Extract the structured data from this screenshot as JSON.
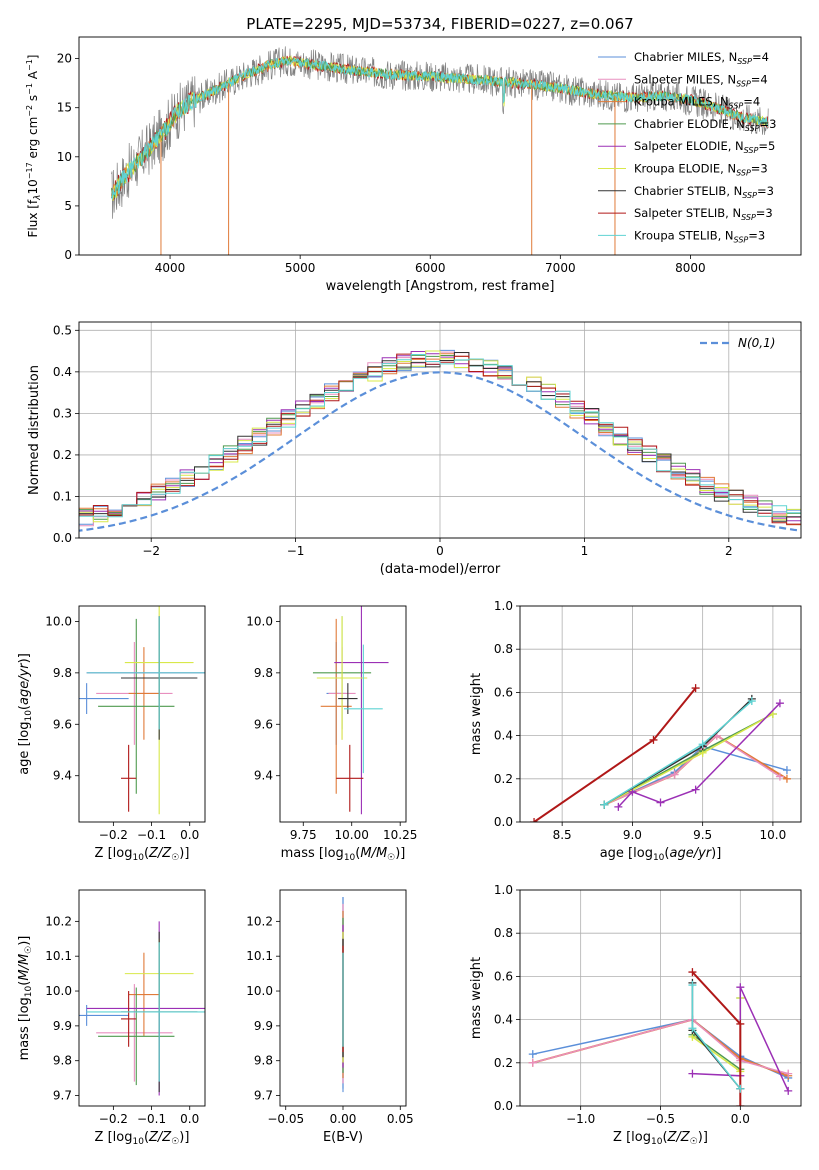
{
  "figure": {
    "title": "PLATE=2295, MJD=53734, FIBERID=0227, z=0.067"
  },
  "colors": {
    "Chabrier MILES": "#5b8fd9",
    "Salpeter MILES": "#e88fbf",
    "Kroupa MILES": "#e07b39",
    "Chabrier ELODIE": "#4f9a4f",
    "Salpeter ELODIE": "#9b30b5",
    "Kroupa ELODIE": "#d8e84a",
    "Chabrier STELIB": "#333333",
    "Salpeter STELIB": "#b01818",
    "Kroupa STELIB": "#5fd3d3",
    "gaussian": "#5b8fd9",
    "data_spectrum": "#808080"
  },
  "chart_data": [
    {
      "id": "spectrum",
      "type": "line",
      "title": "PLATE=2295, MJD=53734, FIBERID=0227, z=0.067",
      "xlabel": "wavelength [Angstrom, rest frame]",
      "ylabel": "Flux [f_λ 10^-17 erg cm^-2 s^-1 A^-1]",
      "xlim": [
        3300,
        8850
      ],
      "ylim": [
        0,
        22.2
      ],
      "xticks": [
        4000,
        5000,
        6000,
        7000,
        8000
      ],
      "yticks": [
        0,
        5,
        10,
        15,
        20
      ],
      "grid": false,
      "legend_position": "top-right",
      "series": [
        {
          "name": "Chabrier MILES, N_SSP=4"
        },
        {
          "name": "Salpeter MILES, N_SSP=4"
        },
        {
          "name": "Kroupa MILES, N_SSP=4"
        },
        {
          "name": "Chabrier ELODIE, N_SSP=3"
        },
        {
          "name": "Salpeter ELODIE, N_SSP=5"
        },
        {
          "name": "Kroupa ELODIE, N_SSP=3"
        },
        {
          "name": "Chabrier STELIB, N_SSP=3"
        },
        {
          "name": "Salpeter STELIB, N_SSP=3"
        },
        {
          "name": "Kroupa STELIB, N_SSP=3"
        }
      ],
      "continuum": {
        "x": [
          3550,
          3650,
          3750,
          3850,
          3950,
          4050,
          4150,
          4300,
          4450,
          4600,
          4700,
          4800,
          4900,
          5000,
          5200,
          5400,
          5600,
          5800,
          6000,
          6200,
          6400,
          6600,
          6800,
          7000,
          7200,
          7400,
          7600,
          7800,
          8000,
          8200,
          8400,
          8600
        ],
        "y": [
          6,
          8,
          9.5,
          11,
          12.5,
          14.5,
          15.5,
          16.5,
          17.5,
          18.5,
          19,
          19.5,
          19.8,
          19.6,
          19.2,
          18.8,
          18.5,
          18.3,
          18.2,
          18,
          17.8,
          17.6,
          17.3,
          17,
          16.5,
          16.2,
          16,
          16.2,
          15.8,
          15,
          14,
          13.5
        ]
      },
      "spikes": [
        {
          "x": 3930,
          "y": 0
        },
        {
          "x": 4450,
          "y": 0
        },
        {
          "x": 6780,
          "y": 0
        },
        {
          "x": 7420,
          "y": 0
        }
      ]
    },
    {
      "id": "residuals",
      "type": "histogram",
      "xlabel": "(data-model)/error",
      "ylabel": "Normed distribution",
      "xlim": [
        -2.5,
        2.5
      ],
      "ylim": [
        0,
        0.52
      ],
      "xticks": [
        -2,
        -1,
        0,
        1,
        2
      ],
      "yticks": [
        0,
        0.1,
        0.2,
        0.3,
        0.4,
        0.5
      ],
      "grid": true,
      "legend_position": "top-right",
      "legend": "N(0,1)",
      "bin_width": 0.1
    },
    {
      "id": "age-vs-Z",
      "type": "errorbar",
      "xlabel": "Z [log10(Z/Z☉)]",
      "ylabel": "age  [log10(age/yr)]",
      "xlim": [
        -0.29,
        0.04
      ],
      "ylim": [
        9.22,
        10.06
      ],
      "xticks": [
        -0.2,
        -0.1,
        0.0
      ],
      "yticks": [
        9.4,
        9.6,
        9.8,
        10.0
      ],
      "points": [
        {
          "x": -0.27,
          "y": 9.7,
          "xerr": 0.11,
          "yerr": 0.06
        },
        {
          "x": -0.145,
          "y": 9.72,
          "xerr": 0.1,
          "yerr": 0.2
        },
        {
          "x": -0.12,
          "y": 9.72,
          "xerr": 0.04,
          "yerr": 0.18
        },
        {
          "x": -0.14,
          "y": 9.67,
          "xerr": 0.1,
          "yerr": 0.34
        },
        {
          "x": -0.08,
          "y": 9.8,
          "xerr": 0.19,
          "yerr": 0.22
        },
        {
          "x": -0.08,
          "y": 9.84,
          "xerr": 0.09,
          "yerr": 0.59
        },
        {
          "x": -0.08,
          "y": 9.78,
          "xerr": 0.1,
          "yerr": 0.24
        },
        {
          "x": -0.16,
          "y": 9.39,
          "xerr": 0.02,
          "yerr": 0.13
        },
        {
          "x": -0.08,
          "y": 9.8,
          "xerr": 0.19,
          "yerr": 0.22
        }
      ]
    },
    {
      "id": "age-vs-mass",
      "type": "errorbar",
      "xlabel": "mass [log10(M/M☉)]",
      "ylabel": "",
      "xlim": [
        9.63,
        10.28
      ],
      "ylim": [
        9.22,
        10.06
      ],
      "xticks": [
        9.75,
        10.0,
        10.25
      ],
      "yticks": [
        9.4,
        9.6,
        9.8,
        10.0
      ],
      "points": [
        {
          "x": 9.92,
          "y": 9.72,
          "xerr": 0.05,
          "yerr": 0.2
        },
        {
          "x": 9.95,
          "y": 9.72,
          "xerr": 0.07,
          "yerr": 0.18
        },
        {
          "x": 9.92,
          "y": 9.67,
          "xerr": 0.08,
          "yerr": 0.34
        },
        {
          "x": 9.95,
          "y": 9.8,
          "xerr": 0.15,
          "yerr": 0.22
        },
        {
          "x": 10.05,
          "y": 9.84,
          "xerr": 0.14,
          "yerr": 0.59
        },
        {
          "x": 9.95,
          "y": 9.78,
          "xerr": 0.13,
          "yerr": 0.24
        },
        {
          "x": 9.98,
          "y": 9.7,
          "xerr": 0.05,
          "yerr": 0.06
        },
        {
          "x": 9.99,
          "y": 9.39,
          "xerr": 0.07,
          "yerr": 0.13
        },
        {
          "x": 10.06,
          "y": 9.66,
          "xerr": 0.1,
          "yerr": 0.25
        }
      ]
    },
    {
      "id": "weight-vs-age",
      "type": "line",
      "xlabel": "age  [log10(age/yr)]",
      "ylabel": "mass weight",
      "xlim": [
        8.2,
        10.2
      ],
      "ylim": [
        0,
        1.0
      ],
      "xticks": [
        8.5,
        9.0,
        9.5,
        10.0
      ],
      "yticks": [
        0,
        0.2,
        0.4,
        0.6,
        0.8,
        1.0
      ],
      "grid": true,
      "series": [
        {
          "color": "Chabrier MILES",
          "x": [
            8.8,
            9.3,
            9.5,
            10.1
          ],
          "y": [
            0.08,
            0.23,
            0.35,
            0.24
          ]
        },
        {
          "color": "Kroupa MILES",
          "x": [
            8.8,
            9.3,
            9.6,
            10.1
          ],
          "y": [
            0.08,
            0.22,
            0.4,
            0.2
          ]
        },
        {
          "color": "Salpeter MILES",
          "x": [
            8.8,
            9.3,
            9.6,
            10.05
          ],
          "y": [
            0.08,
            0.22,
            0.4,
            0.21
          ]
        },
        {
          "color": "Chabrier ELODIE",
          "x": [
            8.8,
            9.5,
            10.0
          ],
          "y": [
            0.08,
            0.33,
            0.5
          ]
        },
        {
          "color": "Kroupa ELODIE",
          "x": [
            8.8,
            9.5,
            10.0
          ],
          "y": [
            0.08,
            0.32,
            0.5
          ]
        },
        {
          "color": "Salpeter ELODIE",
          "x": [
            8.9,
            9.0,
            9.2,
            9.45,
            10.05
          ],
          "y": [
            0.07,
            0.14,
            0.09,
            0.15,
            0.55
          ]
        },
        {
          "color": "Chabrier STELIB",
          "x": [
            8.8,
            9.5,
            9.85
          ],
          "y": [
            0.08,
            0.35,
            0.57
          ]
        },
        {
          "color": "Salpeter STELIB",
          "x": [
            8.3,
            9.15,
            9.45
          ],
          "y": [
            0.0,
            0.38,
            0.62
          ]
        },
        {
          "color": "Kroupa STELIB",
          "x": [
            8.8,
            9.5,
            9.85
          ],
          "y": [
            0.08,
            0.36,
            0.56
          ]
        }
      ]
    },
    {
      "id": "mass-vs-Z",
      "type": "errorbar",
      "xlabel": "Z [log10(Z/Z☉)]",
      "ylabel": "mass [log10(M/M☉)]",
      "xlim": [
        -0.29,
        0.04
      ],
      "ylim": [
        9.67,
        10.29
      ],
      "xticks": [
        -0.2,
        -0.1,
        0.0
      ],
      "yticks": [
        9.7,
        9.8,
        9.9,
        10.0,
        10.1,
        10.2
      ],
      "points": [
        {
          "x": -0.27,
          "y": 9.93,
          "xerr": 0.11,
          "yerr": 0.03
        },
        {
          "x": -0.145,
          "y": 9.88,
          "xerr": 0.1,
          "yerr": 0.14
        },
        {
          "x": -0.12,
          "y": 9.99,
          "xerr": 0.04,
          "yerr": 0.12
        },
        {
          "x": -0.14,
          "y": 9.87,
          "xerr": 0.1,
          "yerr": 0.14
        },
        {
          "x": -0.08,
          "y": 9.95,
          "xerr": 0.19,
          "yerr": 0.25
        },
        {
          "x": -0.08,
          "y": 10.05,
          "xerr": 0.09,
          "yerr": 0.1
        },
        {
          "x": -0.08,
          "y": 9.94,
          "xerr": 0.1,
          "yerr": 0.23
        },
        {
          "x": -0.16,
          "y": 9.92,
          "xerr": 0.02,
          "yerr": 0.08
        },
        {
          "x": -0.08,
          "y": 9.94,
          "xerr": 0.19,
          "yerr": 0.2
        }
      ]
    },
    {
      "id": "mass-vs-ebv",
      "type": "errorbar",
      "xlabel": "E(B-V)",
      "ylabel": "",
      "xlim": [
        -0.055,
        0.055
      ],
      "ylim": [
        9.67,
        10.29
      ],
      "xticks": [
        -0.05,
        0.0,
        0.05
      ],
      "yticks": [
        9.7,
        9.8,
        9.9,
        10.0,
        10.1,
        10.2
      ],
      "points": [
        {
          "x": 0,
          "y": 9.99,
          "xerr": 0,
          "yerr": 0.28
        }
      ]
    },
    {
      "id": "weight-vs-Z",
      "type": "line",
      "xlabel": "Z [log10(Z/Z☉)]",
      "ylabel": "mass weight",
      "xlim": [
        -1.38,
        0.38
      ],
      "ylim": [
        0,
        1.0
      ],
      "xticks": [
        -1.0,
        -0.5,
        0.0
      ],
      "yticks": [
        0,
        0.2,
        0.4,
        0.6,
        0.8,
        1.0
      ],
      "grid": true,
      "series": [
        {
          "color": "Chabrier MILES",
          "x": [
            -1.3,
            -0.3,
            0.0,
            0.3
          ],
          "y": [
            0.24,
            0.4,
            0.23,
            0.13
          ]
        },
        {
          "color": "Kroupa MILES",
          "x": [
            -1.3,
            -0.3,
            0.0,
            0.3
          ],
          "y": [
            0.2,
            0.4,
            0.22,
            0.14
          ]
        },
        {
          "color": "Salpeter MILES",
          "x": [
            -1.3,
            -0.3,
            0.0,
            0.3
          ],
          "y": [
            0.2,
            0.4,
            0.21,
            0.15
          ]
        },
        {
          "color": "Chabrier ELODIE",
          "x": [
            -0.3,
            0.0,
            0.0
          ],
          "y": [
            0.33,
            0.17,
            0.5
          ]
        },
        {
          "color": "Kroupa ELODIE",
          "x": [
            -0.3,
            0.0,
            0.0
          ],
          "y": [
            0.32,
            0.16,
            0.5
          ]
        },
        {
          "color": "Salpeter ELODIE",
          "x": [
            -0.3,
            0.0,
            0.0,
            0.3
          ],
          "y": [
            0.15,
            0.14,
            0.55,
            0.07
          ]
        },
        {
          "color": "Chabrier STELIB",
          "x": [
            -0.3,
            -0.3,
            0.0
          ],
          "y": [
            0.57,
            0.35,
            0.08
          ]
        },
        {
          "color": "Salpeter STELIB",
          "x": [
            -0.3,
            0.0,
            0.0
          ],
          "y": [
            0.62,
            0.38,
            0.0
          ]
        },
        {
          "color": "Kroupa STELIB",
          "x": [
            -0.3,
            -0.3,
            0.0
          ],
          "y": [
            0.56,
            0.36,
            0.08
          ]
        }
      ]
    }
  ]
}
